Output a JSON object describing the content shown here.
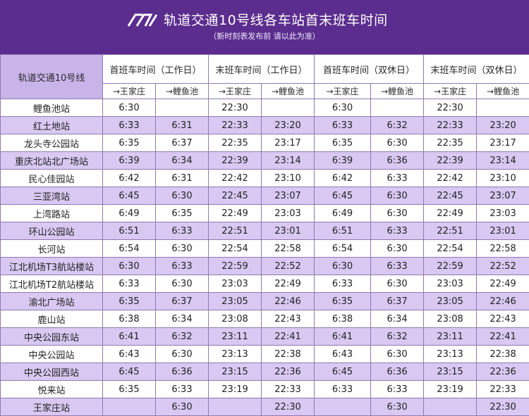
{
  "header": {
    "title": "轨道交通10号线各车站首末班车时间",
    "subtitle": "（新时刻表发布前 请以此为准）"
  },
  "table": {
    "corner_label": "轨道交通10号线",
    "group_headers": [
      "首班车时间（工作日）",
      "末班车时间（工作日）",
      "首班车时间（双休日）",
      "末班车时间（双休日）"
    ],
    "direction_headers": [
      "→王家庄",
      "→鲤鱼池",
      "→王家庄",
      "→鲤鱼池",
      "→王家庄",
      "→鲤鱼池",
      "→王家庄",
      "→鲤鱼池"
    ],
    "rows": [
      {
        "station": "鲤鱼池站",
        "times": [
          "6:30",
          "",
          "22:30",
          "",
          "6:30",
          "",
          "22:30",
          ""
        ]
      },
      {
        "station": "红土地站",
        "times": [
          "6:33",
          "6:31",
          "22:33",
          "23:20",
          "6:33",
          "6:32",
          "22:33",
          "23:20"
        ]
      },
      {
        "station": "龙头寺公园站",
        "times": [
          "6:35",
          "6:37",
          "22:35",
          "23:17",
          "6:35",
          "6:30",
          "22:35",
          "23:17"
        ]
      },
      {
        "station": "重庆北站北广场站",
        "times": [
          "6:39",
          "6:34",
          "22:39",
          "23:14",
          "6:39",
          "6:36",
          "22:39",
          "23:14"
        ]
      },
      {
        "station": "民心佳园站",
        "times": [
          "6:42",
          "6:31",
          "22:42",
          "23:10",
          "6:42",
          "6:33",
          "22:42",
          "23:10"
        ]
      },
      {
        "station": "三亚湾站",
        "times": [
          "6:45",
          "6:30",
          "22:45",
          "23:07",
          "6:45",
          "6:30",
          "22:45",
          "23:07"
        ]
      },
      {
        "station": "上湾路站",
        "times": [
          "6:49",
          "6:35",
          "22:49",
          "23:03",
          "6:49",
          "6:30",
          "22:49",
          "23:03"
        ]
      },
      {
        "station": "环山公园站",
        "times": [
          "6:51",
          "6:33",
          "22:51",
          "23:01",
          "6:51",
          "6:33",
          "22:51",
          "23:01"
        ]
      },
      {
        "station": "长河站",
        "times": [
          "6:54",
          "6:30",
          "22:54",
          "22:58",
          "6:54",
          "6:30",
          "22:54",
          "22:58"
        ]
      },
      {
        "station": "江北机场T3航站楼站",
        "times": [
          "6:30",
          "6:33",
          "22:59",
          "22:52",
          "6:30",
          "6:33",
          "22:59",
          "22:52"
        ]
      },
      {
        "station": "江北机场T2航站楼站",
        "times": [
          "6:33",
          "6:30",
          "23:03",
          "22:49",
          "6:33",
          "6:30",
          "23:03",
          "22:49"
        ]
      },
      {
        "station": "渝北广场站",
        "times": [
          "6:35",
          "6:37",
          "23:05",
          "22:46",
          "6:35",
          "6:37",
          "23:05",
          "22:46"
        ]
      },
      {
        "station": "鹿山站",
        "times": [
          "6:38",
          "6:34",
          "23:08",
          "22:43",
          "6:38",
          "6:34",
          "23:08",
          "22:43"
        ]
      },
      {
        "station": "中央公园东站",
        "times": [
          "6:41",
          "6:32",
          "23:11",
          "22:41",
          "6:41",
          "6:32",
          "23:11",
          "22:41"
        ]
      },
      {
        "station": "中央公园站",
        "times": [
          "6:43",
          "6:30",
          "23:13",
          "22:38",
          "6:43",
          "6:30",
          "23:13",
          "22:38"
        ]
      },
      {
        "station": "中央公园西站",
        "times": [
          "6:45",
          "6:36",
          "23:15",
          "22:36",
          "6:45",
          "6:36",
          "23:15",
          "22:36"
        ]
      },
      {
        "station": "悦来站",
        "times": [
          "6:35",
          "6:33",
          "23:19",
          "22:33",
          "6:33",
          "6:33",
          "23:19",
          "22:33"
        ]
      },
      {
        "station": "王家庄站",
        "times": [
          "",
          "6:30",
          "",
          "22:30",
          "",
          "6:30",
          "",
          "22:30"
        ]
      }
    ]
  },
  "colors": {
    "banner": "#5b2d8e",
    "row_alt": "#d9c8f2",
    "corner": "#c9b4ea",
    "border": "#8f79b0"
  },
  "icons": {
    "logo": "cqrt-logo"
  }
}
